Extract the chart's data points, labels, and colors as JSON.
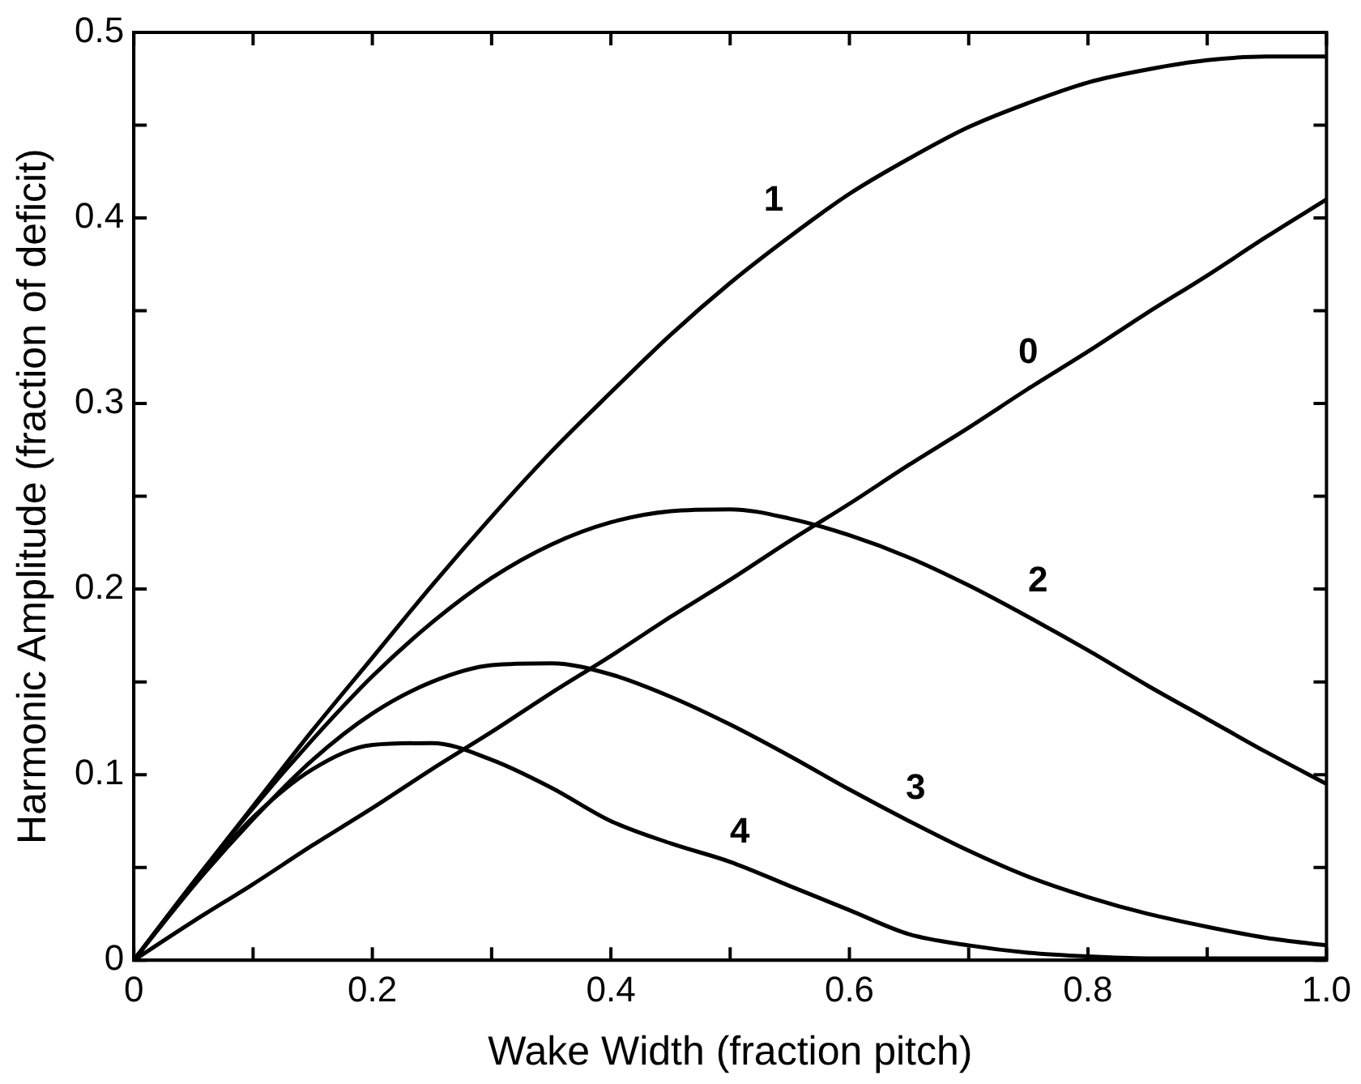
{
  "chart_data": {
    "type": "line",
    "xlabel": "Wake Width (fraction pitch)",
    "ylabel": "Harmonic Amplitude (fraction of deficit)",
    "x": [
      0,
      0.05,
      0.1,
      0.15,
      0.2,
      0.25,
      0.3,
      0.35,
      0.4,
      0.45,
      0.5,
      0.55,
      0.6,
      0.65,
      0.7,
      0.75,
      0.8,
      0.85,
      0.9,
      0.95,
      1.0
    ],
    "series": [
      {
        "name": "0",
        "color": "#000000",
        "values": [
          0,
          0.021,
          0.041,
          0.062,
          0.082,
          0.103,
          0.123,
          0.144,
          0.164,
          0.185,
          0.205,
          0.226,
          0.246,
          0.267,
          0.287,
          0.308,
          0.328,
          0.349,
          0.369,
          0.39,
          0.41
        ]
      },
      {
        "name": "1",
        "color": "#000000",
        "values": [
          0,
          0.042,
          0.083,
          0.124,
          0.163,
          0.202,
          0.239,
          0.274,
          0.306,
          0.337,
          0.365,
          0.39,
          0.413,
          0.432,
          0.449,
          0.462,
          0.473,
          0.48,
          0.485,
          0.487,
          0.487
        ]
      },
      {
        "name": "2",
        "color": "#000000",
        "values": [
          0,
          0.042,
          0.082,
          0.119,
          0.153,
          0.182,
          0.206,
          0.224,
          0.236,
          0.242,
          0.243,
          0.238,
          0.229,
          0.217,
          0.202,
          0.185,
          0.167,
          0.148,
          0.13,
          0.112,
          0.095
        ]
      },
      {
        "name": "3",
        "color": "#000000",
        "values": [
          0,
          0.04,
          0.076,
          0.108,
          0.133,
          0.15,
          0.159,
          0.16,
          0.154,
          0.142,
          0.127,
          0.11,
          0.092,
          0.075,
          0.059,
          0.045,
          0.034,
          0.025,
          0.018,
          0.012,
          0.008
        ]
      },
      {
        "name": "4",
        "color": "#000000",
        "values": [
          0,
          0.041,
          0.077,
          0.103,
          0.116,
          0.117,
          0.108,
          0.093,
          0.075,
          0.063,
          0.053,
          0.04,
          0.027,
          0.014,
          0.008,
          0.004,
          0.002,
          0.001,
          0.001,
          0.001,
          0.001
        ]
      }
    ],
    "xlim": [
      0,
      1
    ],
    "xticks": [
      0,
      {
        "value": 0.1,
        "label": null
      },
      0.2,
      {
        "value": 0.3,
        "label": null
      },
      0.4,
      {
        "value": 0.5,
        "label": null
      },
      0.6,
      {
        "value": 0.7,
        "label": null
      },
      0.8,
      {
        "value": 0.9,
        "label": null
      },
      {
        "value": 1,
        "label": "1.0"
      }
    ],
    "ylim": [
      0,
      0.5
    ],
    "yticks": [
      0,
      {
        "value": 0.05,
        "label": null
      },
      0.1,
      {
        "value": 0.15,
        "label": null
      },
      0.2,
      {
        "value": 0.25,
        "label": null
      },
      0.3,
      {
        "value": 0.35,
        "label": null
      },
      0.4,
      {
        "value": 0.45,
        "label": null
      },
      0.5
    ],
    "grid": false,
    "legend": false,
    "marker": "none",
    "line_style": "solid"
  }
}
